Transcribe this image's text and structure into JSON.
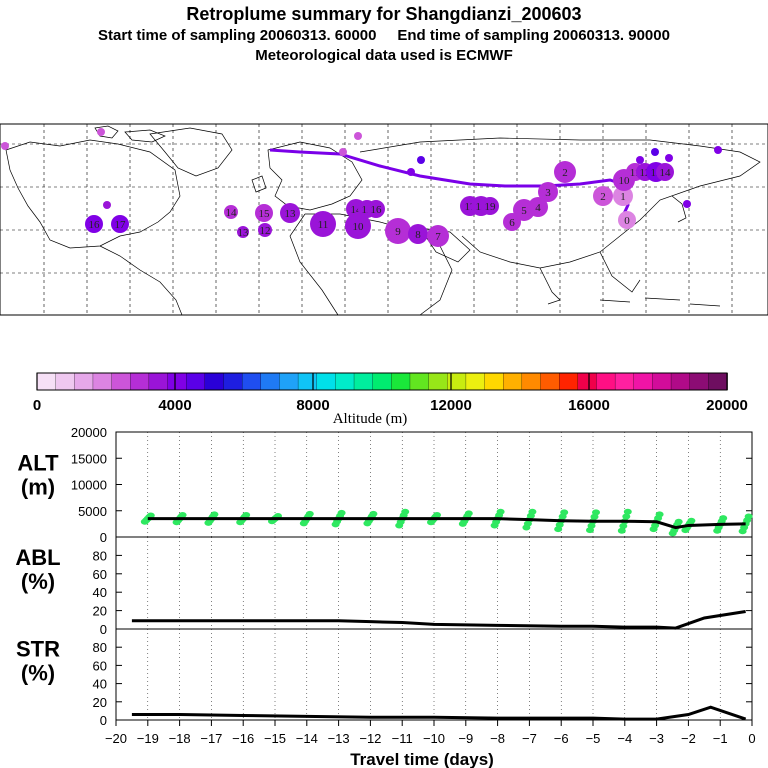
{
  "header": {
    "title": "Retroplume summary for Shangdianzi_200603",
    "line2": "Start time of sampling 20060313. 60000     End time of sampling 20060313. 90000",
    "line3": "Meteorological data used is ECMWF"
  },
  "colorbar": {
    "label": "Altitude (m)",
    "ticks": [
      "0",
      "4000",
      "8000",
      "12000",
      "16000",
      "20000"
    ],
    "colors": [
      "#f6e0f6",
      "#efc8f0",
      "#e6a8ea",
      "#dc84e2",
      "#cc55d9",
      "#b52ed6",
      "#9a14d8",
      "#8000e6",
      "#5a00e8",
      "#2a00d8",
      "#1e1ee0",
      "#1f4ef0",
      "#1f7af4",
      "#1fa2f8",
      "#10c4f6",
      "#00e0ea",
      "#00ecca",
      "#00ee9e",
      "#00ec70",
      "#1ae83a",
      "#62e620",
      "#98e618",
      "#c8ec10",
      "#ecef10",
      "#ffd800",
      "#ffb000",
      "#ff8a00",
      "#ff5c00",
      "#ff2400",
      "#f0004a",
      "#ff0f84",
      "#ff20a0",
      "#f014a6",
      "#d20c9a",
      "#b00a88",
      "#8c0c74",
      "#6e0e60"
    ]
  },
  "map": {
    "numbered_points": [
      {
        "label": "16",
        "alt": 3800
      },
      {
        "label": "17",
        "alt": 3800
      },
      {
        "label": "13",
        "alt": 3300
      },
      {
        "label": "12",
        "alt": 3300
      },
      {
        "label": "14",
        "alt": 3200
      },
      {
        "label": "15",
        "alt": 3200
      },
      {
        "label": "13",
        "alt": 3300
      },
      {
        "label": "11",
        "alt": 3500
      },
      {
        "label": "10",
        "alt": 3400
      },
      {
        "label": "14",
        "alt": 3300
      },
      {
        "label": "15",
        "alt": 3400
      },
      {
        "label": "16",
        "alt": 3400
      },
      {
        "label": "9",
        "alt": 3200
      },
      {
        "label": "8",
        "alt": 3300
      },
      {
        "label": "7",
        "alt": 3000
      },
      {
        "label": "17",
        "alt": 3300
      },
      {
        "label": "18",
        "alt": 3400
      },
      {
        "label": "19",
        "alt": 3300
      },
      {
        "label": "6",
        "alt": 3100
      },
      {
        "label": "5",
        "alt": 3000
      },
      {
        "label": "4",
        "alt": 3000
      },
      {
        "label": "3",
        "alt": 2800
      },
      {
        "label": "2",
        "alt": 2900
      },
      {
        "label": "2",
        "alt": 2500
      },
      {
        "label": "1",
        "alt": 2000
      },
      {
        "label": "0",
        "alt": 1800
      },
      {
        "label": "10",
        "alt": 3000
      },
      {
        "label": "11",
        "alt": 3200
      },
      {
        "label": "12",
        "alt": 3600
      },
      {
        "label": "13",
        "alt": 3800
      },
      {
        "label": "14",
        "alt": 3400
      }
    ]
  },
  "chart_data": [
    {
      "type": "line",
      "panel": "ALT",
      "ylabel": "ALT\n(m)",
      "ylim": [
        0,
        20000
      ],
      "yticks": [
        0,
        5000,
        10000,
        15000,
        20000
      ],
      "x": [
        -19,
        -18,
        -17,
        -16,
        -15,
        -14,
        -13,
        -12,
        -11,
        -10,
        -9,
        -8,
        -7,
        -6,
        -5,
        -4,
        -3,
        -2.4,
        -2,
        -1,
        -0.2
      ],
      "series": [
        {
          "name": "median altitude",
          "values": [
            3500,
            3500,
            3500,
            3500,
            3500,
            3500,
            3500,
            3500,
            3500,
            3500,
            3500,
            3500,
            3300,
            3100,
            3000,
            3000,
            2900,
            1800,
            2200,
            2400,
            2500
          ]
        }
      ],
      "scatter_spread": [
        600,
        700,
        800,
        700,
        500,
        900,
        1100,
        900,
        1300,
        700,
        1000,
        1300,
        1500,
        1600,
        1700,
        1800,
        1400,
        1100,
        900,
        1200,
        1400
      ]
    },
    {
      "type": "line",
      "panel": "ABL",
      "ylabel": "ABL\n(%)",
      "ylim": [
        0,
        100
      ],
      "yticks": [
        0,
        20,
        40,
        60,
        80
      ],
      "x": [
        -19.5,
        -18,
        -16,
        -14,
        -13,
        -12,
        -11,
        -10,
        -8,
        -6,
        -5,
        -4,
        -3,
        -2.4,
        -1.5,
        -0.2
      ],
      "series": [
        {
          "name": "fraction in boundary layer",
          "values": [
            9,
            9,
            9,
            9,
            9,
            8,
            7,
            5,
            4,
            3,
            3,
            2,
            2,
            1,
            12,
            19
          ]
        }
      ]
    },
    {
      "type": "line",
      "panel": "STR",
      "ylabel": "STR\n(%)",
      "ylim": [
        0,
        100
      ],
      "yticks": [
        0,
        20,
        40,
        60,
        80
      ],
      "x": [
        -19.5,
        -18,
        -16,
        -14,
        -12,
        -10,
        -8,
        -6,
        -5,
        -4,
        -3,
        -2,
        -1.3,
        -0.2
      ],
      "series": [
        {
          "name": "fraction in stratosphere",
          "values": [
            6,
            6,
            5,
            4,
            3,
            3,
            2,
            2,
            2,
            1,
            1,
            6,
            14,
            1
          ]
        }
      ],
      "xlabel": "Travel time (days)",
      "xlim": [
        -20,
        0
      ],
      "xticks": [
        -20,
        -19,
        -18,
        -17,
        -16,
        -15,
        -14,
        -13,
        -12,
        -11,
        -10,
        -9,
        -8,
        -7,
        -6,
        -5,
        -4,
        -3,
        -2,
        -1,
        0
      ]
    }
  ]
}
